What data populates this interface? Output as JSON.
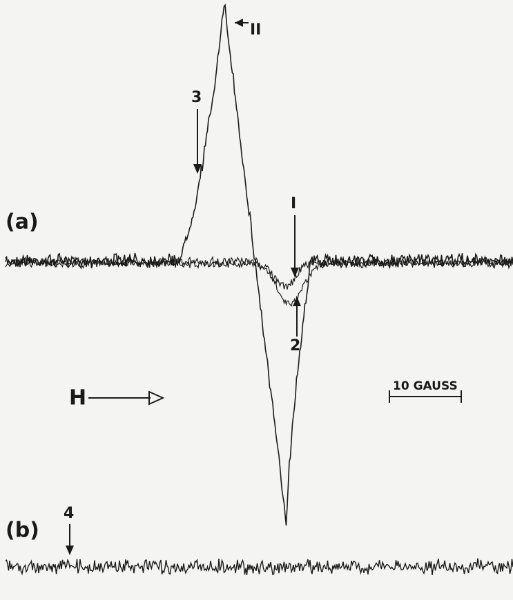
{
  "figure": {
    "panels": [
      {
        "label": "(a)"
      },
      {
        "label": "(b)"
      }
    ],
    "annotations": [
      "II",
      "3",
      "I",
      "2",
      "4"
    ],
    "field_label": "H",
    "scale_bar": "10 GAUSS"
  }
}
